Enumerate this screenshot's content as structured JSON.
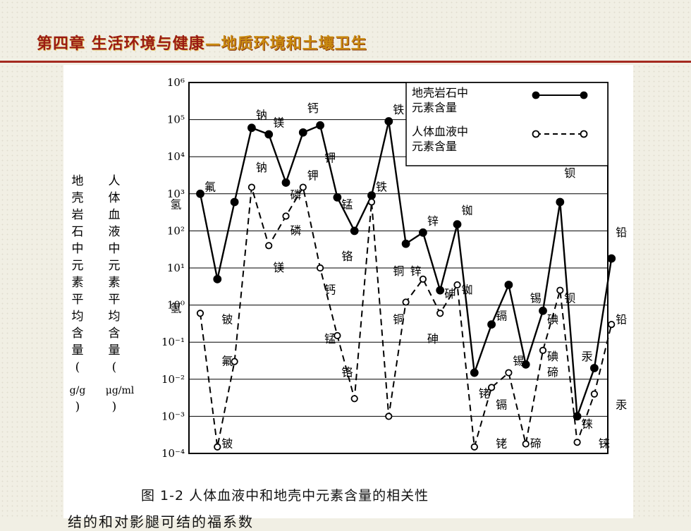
{
  "header": {
    "title": "第四章 生活环境与健康",
    "subtitle": "—地质环境和土壤卫生"
  },
  "caption": "图 1-2   人体血液中和地壳中元素含量的相关性",
  "cut_line": "结的和对影腿可结的福系数",
  "colors": {
    "header_red": "#9a1b12",
    "header_gold": "#c98a10",
    "line": "#000000"
  },
  "chart_data": {
    "type": "line",
    "title": "",
    "yscale": "log",
    "ylim": [
      0.0001,
      1000000
    ],
    "y_ticks": [
      "10⁶",
      "10⁵",
      "10⁴",
      "10³",
      "10²",
      "10¹",
      "10⁰",
      "10⁻¹",
      "10⁻²",
      "10⁻³",
      "10⁻⁴"
    ],
    "ylabel_left": "地壳岩石中元素平均含量(g/g)",
    "ylabel_left_chars": [
      "地",
      "壳",
      "岩",
      "石",
      "中",
      "元",
      "素",
      "平",
      "均",
      "含",
      "量",
      "(",
      "g/g",
      ")"
    ],
    "ylabel_right": "人体血液中元素平均含量(μg/ml)",
    "ylabel_right_chars": [
      "人",
      "体",
      "血",
      "液",
      "中",
      "元",
      "素",
      "平",
      "均",
      "含",
      "量",
      "(",
      "μg/ml",
      ")"
    ],
    "legend": {
      "placement": "top-right",
      "entries": [
        {
          "label_lines": [
            "地壳岩石中",
            "元素含量"
          ],
          "style": "solid-filled"
        },
        {
          "label_lines": [
            "人体血液中",
            "元素含量"
          ],
          "style": "dashed-open"
        }
      ]
    },
    "series": [
      {
        "name": "地壳岩石中元素含量",
        "style": "solid",
        "marker": "filled",
        "points": [
          {
            "x": 1,
            "y": 1000
          },
          {
            "x": 2,
            "y": 5
          },
          {
            "x": 3,
            "y": 600
          },
          {
            "x": 4,
            "y": 60000
          },
          {
            "x": 5,
            "y": 40000
          },
          {
            "x": 6,
            "y": 2000
          },
          {
            "x": 7,
            "y": 45000
          },
          {
            "x": 8,
            "y": 70000
          },
          {
            "x": 9,
            "y": 800
          },
          {
            "x": 10,
            "y": 100
          },
          {
            "x": 11,
            "y": 900
          },
          {
            "x": 12,
            "y": 90000
          },
          {
            "x": 13,
            "y": 45
          },
          {
            "x": 14,
            "y": 90
          },
          {
            "x": 15,
            "y": 2.5
          },
          {
            "x": 16,
            "y": 150
          },
          {
            "x": 17,
            "y": 0.015
          },
          {
            "x": 18,
            "y": 0.3
          },
          {
            "x": 19,
            "y": 3.5
          },
          {
            "x": 20,
            "y": 0.025
          },
          {
            "x": 21,
            "y": 0.7
          },
          {
            "x": 22,
            "y": 600
          },
          {
            "x": 23,
            "y": 0.001
          },
          {
            "x": 24,
            "y": 0.02
          },
          {
            "x": 25,
            "y": 18
          }
        ]
      },
      {
        "name": "人体血液中元素含量",
        "style": "dashed",
        "marker": "open",
        "points": [
          {
            "x": 1,
            "y": 0.6
          },
          {
            "x": 2,
            "y": 0.00015
          },
          {
            "x": 3,
            "y": 0.03
          },
          {
            "x": 4,
            "y": 1500
          },
          {
            "x": 5,
            "y": 40
          },
          {
            "x": 6,
            "y": 250
          },
          {
            "x": 7,
            "y": 1500
          },
          {
            "x": 8,
            "y": 10
          },
          {
            "x": 9,
            "y": 0.15
          },
          {
            "x": 10,
            "y": 0.003
          },
          {
            "x": 11,
            "y": 600
          },
          {
            "x": 12,
            "y": 0.001
          },
          {
            "x": 13,
            "y": 1.2
          },
          {
            "x": 14,
            "y": 5
          },
          {
            "x": 15,
            "y": 0.6
          },
          {
            "x": 16,
            "y": 3.5
          },
          {
            "x": 17,
            "y": 0.00015
          },
          {
            "x": 18,
            "y": 0.006
          },
          {
            "x": 19,
            "y": 0.015
          },
          {
            "x": 20,
            "y": 0.00018
          },
          {
            "x": 21,
            "y": 0.06
          },
          {
            "x": 22,
            "y": 2.5
          },
          {
            "x": 23,
            "y": 0.0002
          },
          {
            "x": 24,
            "y": 0.004
          },
          {
            "x": 25,
            "y": 0.3
          }
        ]
      }
    ],
    "labels": [
      {
        "text": "钠",
        "x": 4,
        "y": 130000
      },
      {
        "text": "镁",
        "x": 5,
        "y": 80000
      },
      {
        "text": "钙",
        "x": 7,
        "y": 200000
      },
      {
        "text": "铁",
        "x": 12,
        "y": 180000
      },
      {
        "text": "钾",
        "x": 8,
        "y": 9000
      },
      {
        "text": "氟",
        "x": 1,
        "y": 1500
      },
      {
        "text": "氢",
        "x": -1,
        "y": 500
      },
      {
        "text": "钠",
        "x": 4,
        "y": 5000
      },
      {
        "text": "钾",
        "x": 7,
        "y": 3000
      },
      {
        "text": "磷",
        "x": 6,
        "y": 900
      },
      {
        "text": "锰",
        "x": 9,
        "y": 500
      },
      {
        "text": "铁",
        "x": 11,
        "y": 1500
      },
      {
        "text": "磷",
        "x": 6,
        "y": 100
      },
      {
        "text": "镁",
        "x": 5,
        "y": 10
      },
      {
        "text": "铬",
        "x": 9,
        "y": 20
      },
      {
        "text": "锌",
        "x": 14,
        "y": 180
      },
      {
        "text": "铷",
        "x": 16,
        "y": 350
      },
      {
        "text": "铜",
        "x": 12,
        "y": 8
      },
      {
        "text": "锌",
        "x": 13,
        "y": 8
      },
      {
        "text": "钙",
        "x": 8,
        "y": 2.5
      },
      {
        "text": "砷",
        "x": 15,
        "y": 2
      },
      {
        "text": "铷",
        "x": 16,
        "y": 2.5
      },
      {
        "text": "钡",
        "x": 22,
        "y": 3500
      },
      {
        "text": "铅",
        "x": 25,
        "y": 90
      },
      {
        "text": "锡",
        "x": 20,
        "y": 1.5
      },
      {
        "text": "钡",
        "x": 22,
        "y": 1.5
      },
      {
        "text": "碘",
        "x": 21,
        "y": 0.4
      },
      {
        "text": "铍",
        "x": 2,
        "y": 0.4
      },
      {
        "text": "氢",
        "x": -1,
        "y": 0.8
      },
      {
        "text": "铜",
        "x": 12,
        "y": 0.4
      },
      {
        "text": "镉",
        "x": 18,
        "y": 0.5
      },
      {
        "text": "砷",
        "x": 14,
        "y": 0.12
      },
      {
        "text": "铅",
        "x": 25,
        "y": 0.4
      },
      {
        "text": "锰",
        "x": 8,
        "y": 0.12
      },
      {
        "text": "氟",
        "x": 2,
        "y": 0.03
      },
      {
        "text": "铬",
        "x": 9,
        "y": 0.015
      },
      {
        "text": "碘",
        "x": 21,
        "y": 0.04
      },
      {
        "text": "锡",
        "x": 19,
        "y": 0.03
      },
      {
        "text": "碲",
        "x": 21,
        "y": 0.015
      },
      {
        "text": "汞",
        "x": 23,
        "y": 0.04
      },
      {
        "text": "铑",
        "x": 17,
        "y": 0.004
      },
      {
        "text": "镉",
        "x": 18,
        "y": 0.002
      },
      {
        "text": "汞",
        "x": 25,
        "y": 0.002
      },
      {
        "text": "铼",
        "x": 23,
        "y": 0.0006
      },
      {
        "text": "铍",
        "x": 2,
        "y": 0.00018
      },
      {
        "text": "铑",
        "x": 18,
        "y": 0.00018
      },
      {
        "text": "碲",
        "x": 20,
        "y": 0.00018
      },
      {
        "text": "铼",
        "x": 24,
        "y": 0.00018
      }
    ]
  }
}
